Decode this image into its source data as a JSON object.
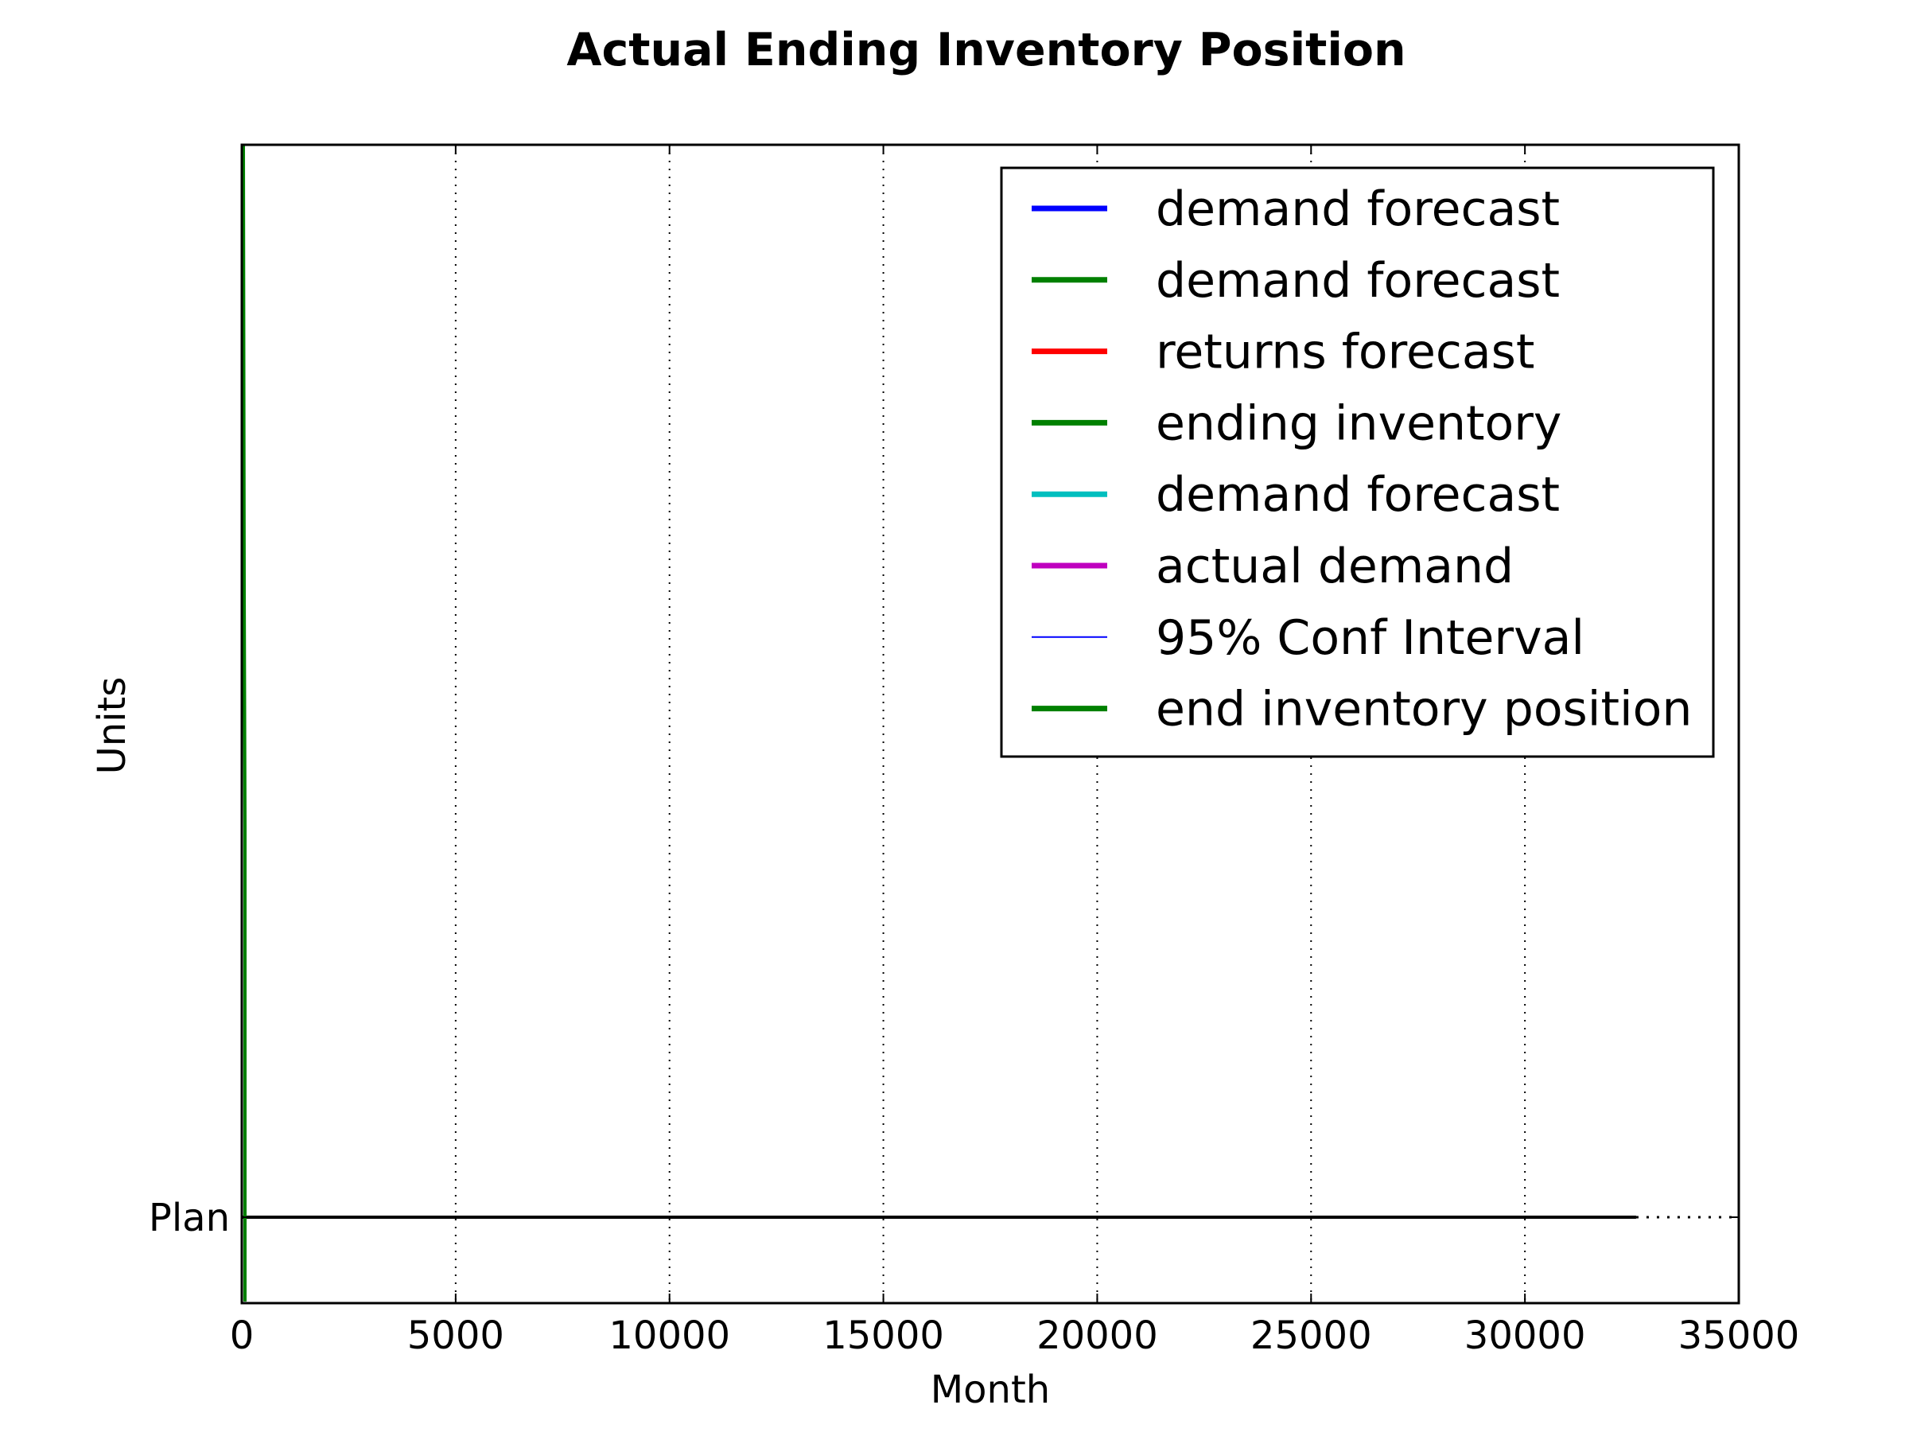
{
  "chart_data": {
    "type": "line",
    "title": "Actual Ending Inventory Position",
    "xlabel": "Month",
    "ylabel": "Units",
    "xlim": [
      0,
      35000
    ],
    "x_ticks": [
      0,
      5000,
      10000,
      15000,
      20000,
      25000,
      30000,
      35000
    ],
    "y_ticks": [
      "Plan"
    ],
    "grid": true,
    "legend_position": "top-right",
    "plan_line": {
      "label": "Plan",
      "solid_until_x": 32600,
      "dotted_after": true,
      "color": "#000000"
    },
    "series": [
      {
        "name": "demand forecast",
        "color": "#0000ff",
        "style": "thick"
      },
      {
        "name": "demand forecast",
        "color": "#008000",
        "style": "thick"
      },
      {
        "name": "returns forecast",
        "color": "#ff0000",
        "style": "thick"
      },
      {
        "name": "ending inventory",
        "color": "#008000",
        "style": "thick"
      },
      {
        "name": "demand forecast",
        "color": "#00bfbf",
        "style": "thick"
      },
      {
        "name": "actual demand",
        "color": "#bf00bf",
        "style": "thick"
      },
      {
        "name": "95% Conf Interval",
        "color": "#0000ff",
        "style": "thin"
      },
      {
        "name": "end inventory position",
        "color": "#008000",
        "style": "thick"
      }
    ]
  }
}
